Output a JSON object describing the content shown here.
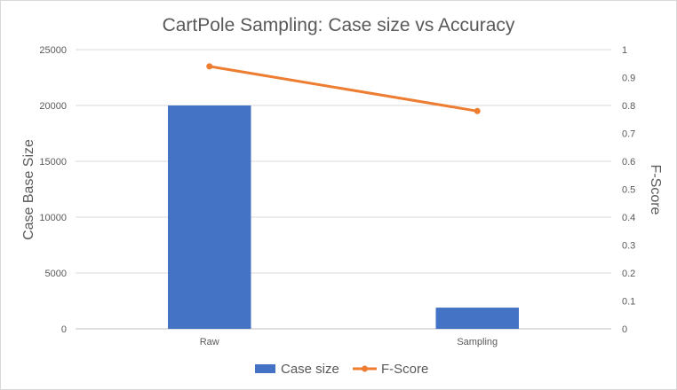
{
  "chart_data": {
    "type": "bar",
    "title": "CartPole Sampling: Case size vs Accuracy",
    "categories": [
      "Raw",
      "Sampling"
    ],
    "ylabel": "Case Base Size",
    "y2label": "F-Score",
    "ylim": [
      0,
      25000
    ],
    "y2lim": [
      0,
      1
    ],
    "yticks": [
      "0",
      "5000",
      "10000",
      "15000",
      "20000",
      "25000"
    ],
    "y2ticks": [
      "0",
      "0.1",
      "0.2",
      "0.3",
      "0.4",
      "0.5",
      "0.6",
      "0.7",
      "0.8",
      "0.9",
      "1"
    ],
    "grid": true,
    "legend_position": "bottom",
    "series": [
      {
        "name": "Case size",
        "type": "bar",
        "axis": "left",
        "color": "#4472C4",
        "values": [
          20000,
          1900
        ]
      },
      {
        "name": "F-Score",
        "type": "line",
        "axis": "right",
        "color": "#ED7D31",
        "values": [
          0.94,
          0.78
        ]
      }
    ]
  }
}
